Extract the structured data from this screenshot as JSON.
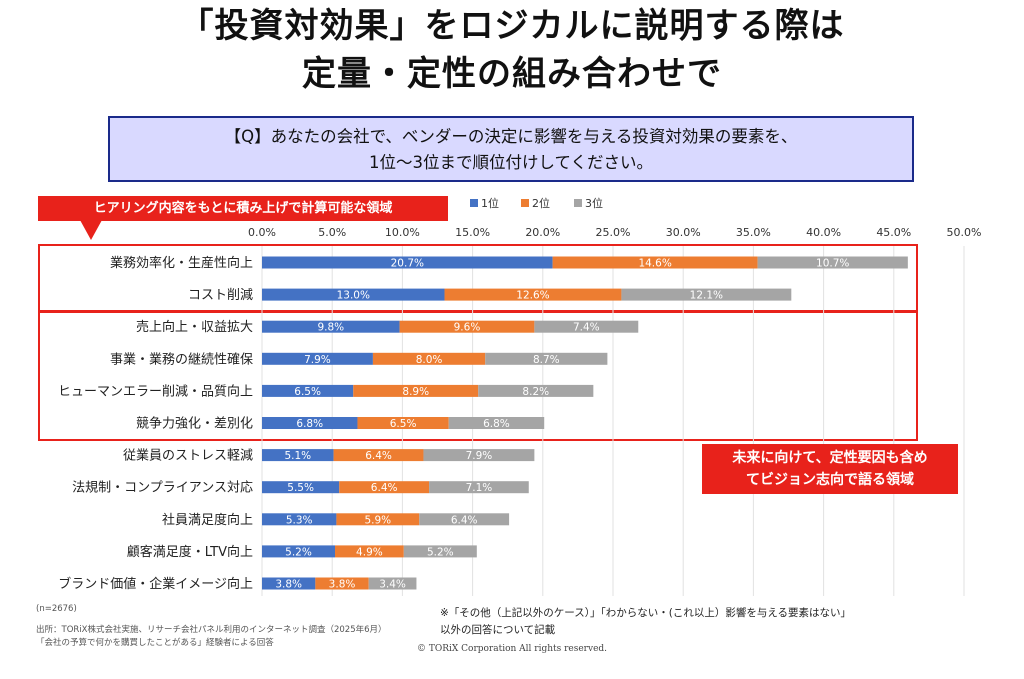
{
  "title": {
    "line1": "「投資対効果」をロジカルに説明する際は",
    "line2": "定量・定性の組み合わせで"
  },
  "question": {
    "line1": "【Q】あなたの会社で、ベンダーの決定に影響を与える投資対効果の要素を、",
    "line2": "1位〜3位まで順位付けしてください。"
  },
  "callouts": {
    "top": "ヒアリング内容をもとに積み上げで計算可能な領域",
    "right_line1": "未来に向けて、定性要因も含め",
    "right_line2": "てビジョン志向で語る領域"
  },
  "footer": {
    "n": "(n=2676)",
    "source1": "出所：TORiX株式会社実施、リサーチ会社パネル利用のインターネット調査（2025年6月）",
    "source2": "「会社の予算で何かを購買したことがある」経験者による回答",
    "copyright": "© TORiX Corporation All rights reserved.",
    "note1": "※「その他（上記以外のケース）」「わからない・(これ以上）影響を与える要素はない」",
    "note2": "以外の回答について記載"
  },
  "colors": {
    "rank1": "#4472c4",
    "rank2": "#ed7d31",
    "rank3": "#a5a5a5",
    "highlight": "#e8221b",
    "question_bg": "#d9d9ff",
    "question_border": "#1a2a8a"
  },
  "chart_data": {
    "type": "bar",
    "orientation": "horizontal",
    "stacked": true,
    "categories": [
      "業務効率化・生産性向上",
      "コスト削減",
      "売上向上・収益拡大",
      "事業・業務の継続性確保",
      "ヒューマンエラー削減・品質向上",
      "競争力強化・差別化",
      "従業員のストレス軽減",
      "法規制・コンプライアンス対応",
      "社員満足度向上",
      "顧客満足度・LTV向上",
      "ブランド価値・企業イメージ向上"
    ],
    "series": [
      {
        "name": "1位",
        "color": "#4472c4",
        "values": [
          20.7,
          13.0,
          9.8,
          7.9,
          6.5,
          6.8,
          5.1,
          5.5,
          5.3,
          5.2,
          3.8
        ]
      },
      {
        "name": "2位",
        "color": "#ed7d31",
        "values": [
          14.6,
          12.6,
          9.6,
          8.0,
          8.9,
          6.5,
          6.4,
          6.4,
          5.9,
          4.9,
          3.8
        ]
      },
      {
        "name": "3位",
        "color": "#a5a5a5",
        "values": [
          10.7,
          12.1,
          7.4,
          8.7,
          8.2,
          6.8,
          7.9,
          7.1,
          6.4,
          5.2,
          3.4
        ]
      }
    ],
    "xlim": [
      0,
      50
    ],
    "x_ticks": [
      "0.0%",
      "5.0%",
      "10.0%",
      "15.0%",
      "20.0%",
      "25.0%",
      "30.0%",
      "35.0%",
      "40.0%",
      "45.0%",
      "50.0%"
    ],
    "legend_position": "top",
    "grid": "vertical"
  }
}
